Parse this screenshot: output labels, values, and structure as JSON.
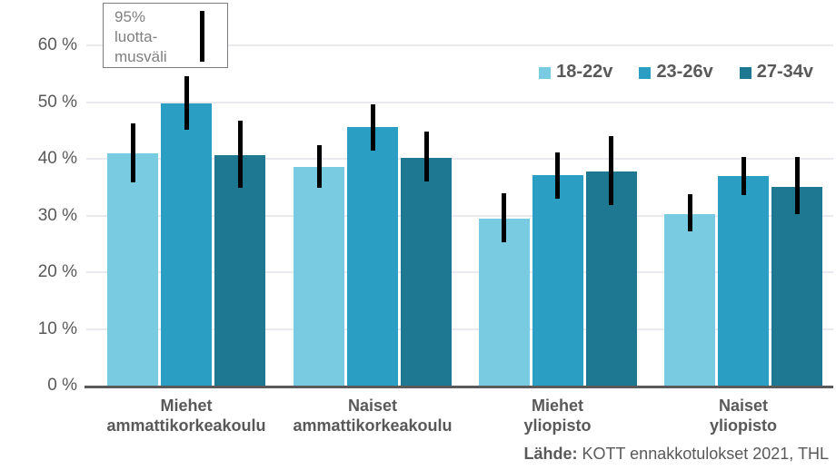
{
  "annotation": {
    "text": "95%\nluotta-\nmusväli"
  },
  "source": {
    "label": "Lähde:",
    "text": " KOTT ennakkotulokset 2021, THL"
  },
  "colors": {
    "gridline": "#e8eaef",
    "axis_line": "#5a5a5a",
    "axis_text": "#595959",
    "annotation_text": "#808080",
    "error_bar": "#000000"
  },
  "chart_data": {
    "type": "bar",
    "title": "",
    "xlabel": "",
    "ylabel": "",
    "categories": [
      "Miehet\nammattikorkeakoulu",
      "Naiset\nammattikorkeakoulu",
      "Miehet\nyliopisto",
      "Naiset\nyliopisto"
    ],
    "series": [
      {
        "name": "18-22v",
        "color": "#78CBE0",
        "values": [
          41.0,
          38.5,
          29.5,
          30.3
        ],
        "ci_low": [
          35.9,
          34.9,
          25.3,
          27.2
        ],
        "ci_high": [
          46.2,
          42.4,
          34.0,
          33.8
        ]
      },
      {
        "name": "23-26v",
        "color": "#2B9EC4",
        "values": [
          49.7,
          45.6,
          37.2,
          37.0
        ],
        "ci_low": [
          45.1,
          41.5,
          33.0,
          33.6
        ],
        "ci_high": [
          54.5,
          49.6,
          41.2,
          40.4
        ]
      },
      {
        "name": "27-34v",
        "color": "#1F7891",
        "values": [
          40.7,
          40.2,
          37.8,
          35.0
        ],
        "ci_low": [
          34.9,
          36.0,
          31.8,
          30.2
        ],
        "ci_high": [
          46.7,
          44.8,
          44.0,
          40.3
        ]
      }
    ],
    "yticks": [
      0,
      10,
      20,
      30,
      40,
      50,
      60
    ],
    "ytick_labels": [
      "0 %",
      "10 %",
      "20 %",
      "30 %",
      "40 %",
      "50 %",
      "60 %"
    ],
    "ylim": [
      0,
      66
    ],
    "grid": true,
    "legend_position": "top-right",
    "error_bars": "95% confidence interval"
  }
}
